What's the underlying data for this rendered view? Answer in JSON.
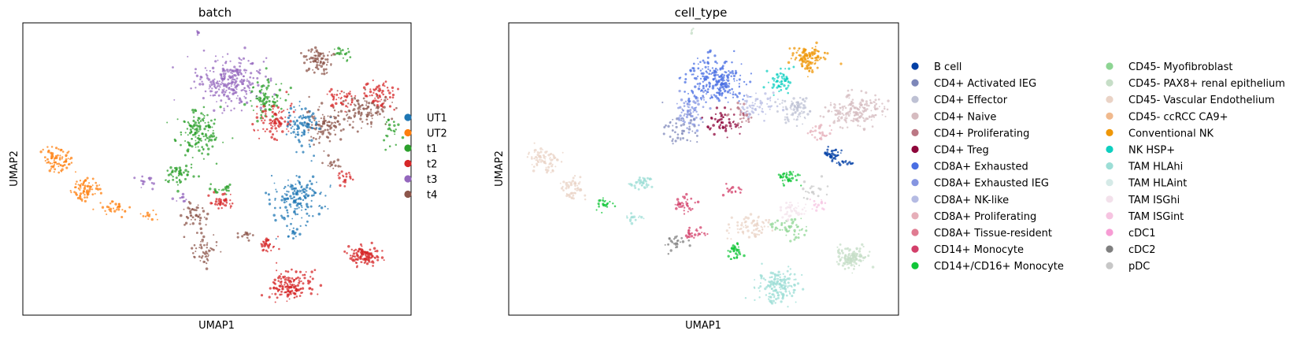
{
  "chart_data": [
    {
      "type": "scatter",
      "title": "batch",
      "xlabel": "UMAP1",
      "ylabel": "UMAP2",
      "grid": false,
      "legend_placement": "right",
      "categories": [
        {
          "name": "UT1",
          "color": "#1f77b4"
        },
        {
          "name": "UT2",
          "color": "#ff7f0e"
        },
        {
          "name": "t1",
          "color": "#2ca02c"
        },
        {
          "name": "t2",
          "color": "#d62728"
        },
        {
          "name": "t3",
          "color": "#9467bd"
        },
        {
          "name": "t4",
          "color": "#8c564b"
        }
      ],
      "clusters": [
        {
          "cat": 4,
          "x": 0.53,
          "y": 0.8,
          "rx": 0.075,
          "ry": 0.075,
          "n": 260
        },
        {
          "cat": 2,
          "x": 0.45,
          "y": 0.62,
          "rx": 0.05,
          "ry": 0.07,
          "n": 150
        },
        {
          "cat": 2,
          "x": 0.62,
          "y": 0.74,
          "rx": 0.05,
          "ry": 0.06,
          "n": 90
        },
        {
          "cat": 2,
          "x": 0.4,
          "y": 0.48,
          "rx": 0.035,
          "ry": 0.035,
          "n": 50
        },
        {
          "cat": 2,
          "x": 0.82,
          "y": 0.9,
          "rx": 0.02,
          "ry": 0.02,
          "n": 20
        },
        {
          "cat": 2,
          "x": 0.95,
          "y": 0.64,
          "rx": 0.025,
          "ry": 0.04,
          "n": 25
        },
        {
          "cat": 5,
          "x": 0.76,
          "y": 0.87,
          "rx": 0.035,
          "ry": 0.04,
          "n": 80
        },
        {
          "cat": 5,
          "x": 0.78,
          "y": 0.65,
          "rx": 0.05,
          "ry": 0.05,
          "n": 100
        },
        {
          "cat": 5,
          "x": 0.88,
          "y": 0.7,
          "rx": 0.06,
          "ry": 0.05,
          "n": 110
        },
        {
          "cat": 5,
          "x": 0.44,
          "y": 0.34,
          "rx": 0.035,
          "ry": 0.045,
          "n": 45
        },
        {
          "cat": 5,
          "x": 0.47,
          "y": 0.22,
          "rx": 0.035,
          "ry": 0.05,
          "n": 50
        },
        {
          "cat": 5,
          "x": 0.58,
          "y": 0.27,
          "rx": 0.02,
          "ry": 0.02,
          "n": 15
        },
        {
          "cat": 5,
          "x": 0.8,
          "y": 0.52,
          "rx": 0.02,
          "ry": 0.02,
          "n": 15
        },
        {
          "cat": 3,
          "x": 0.65,
          "y": 0.67,
          "rx": 0.04,
          "ry": 0.05,
          "n": 90
        },
        {
          "cat": 3,
          "x": 0.82,
          "y": 0.74,
          "rx": 0.035,
          "ry": 0.03,
          "n": 40
        },
        {
          "cat": 3,
          "x": 0.92,
          "y": 0.75,
          "rx": 0.04,
          "ry": 0.04,
          "n": 60
        },
        {
          "cat": 3,
          "x": 0.69,
          "y": 0.1,
          "rx": 0.045,
          "ry": 0.05,
          "n": 160
        },
        {
          "cat": 3,
          "x": 0.88,
          "y": 0.2,
          "rx": 0.035,
          "ry": 0.03,
          "n": 120
        },
        {
          "cat": 3,
          "x": 0.63,
          "y": 0.24,
          "rx": 0.02,
          "ry": 0.03,
          "n": 35
        },
        {
          "cat": 3,
          "x": 0.51,
          "y": 0.39,
          "rx": 0.03,
          "ry": 0.03,
          "n": 40
        },
        {
          "cat": 3,
          "x": 0.83,
          "y": 0.47,
          "rx": 0.015,
          "ry": 0.02,
          "n": 20
        },
        {
          "cat": 0,
          "x": 0.72,
          "y": 0.65,
          "rx": 0.035,
          "ry": 0.06,
          "n": 90
        },
        {
          "cat": 0,
          "x": 0.71,
          "y": 0.4,
          "rx": 0.06,
          "ry": 0.08,
          "n": 170
        },
        {
          "cat": 0,
          "x": 0.69,
          "y": 0.28,
          "rx": 0.02,
          "ry": 0.02,
          "n": 15
        },
        {
          "cat": 1,
          "x": 0.09,
          "y": 0.53,
          "rx": 0.035,
          "ry": 0.035,
          "n": 80
        },
        {
          "cat": 1,
          "x": 0.16,
          "y": 0.43,
          "rx": 0.035,
          "ry": 0.04,
          "n": 70
        },
        {
          "cat": 1,
          "x": 0.24,
          "y": 0.37,
          "rx": 0.03,
          "ry": 0.025,
          "n": 30
        },
        {
          "cat": 1,
          "x": 0.32,
          "y": 0.34,
          "rx": 0.02,
          "ry": 0.02,
          "n": 12
        },
        {
          "cat": 4,
          "x": 0.32,
          "y": 0.46,
          "rx": 0.02,
          "ry": 0.02,
          "n": 15
        },
        {
          "cat": 4,
          "x": 0.41,
          "y": 0.4,
          "rx": 0.02,
          "ry": 0.015,
          "n": 10
        },
        {
          "cat": 2,
          "x": 0.51,
          "y": 0.43,
          "rx": 0.025,
          "ry": 0.02,
          "n": 20
        },
        {
          "cat": 4,
          "x": 0.45,
          "y": 0.97,
          "rx": 0.005,
          "ry": 0.01,
          "n": 6
        }
      ]
    },
    {
      "type": "scatter",
      "title": "cell_type",
      "xlabel": "UMAP1",
      "ylabel": "UMAP2",
      "grid": false,
      "legend_placement": "right",
      "categories": [
        {
          "name": "B cell",
          "color": "#023fa5"
        },
        {
          "name": "CD4+ Activated IEG",
          "color": "#7d87b9"
        },
        {
          "name": "CD4+ Effector",
          "color": "#bec1d4"
        },
        {
          "name": "CD4+ Naive",
          "color": "#d6bcc0"
        },
        {
          "name": "CD4+ Proliferating",
          "color": "#bb7784"
        },
        {
          "name": "CD4+ Treg",
          "color": "#8e063b"
        },
        {
          "name": "CD8A+ Exhausted",
          "color": "#4a6fe3"
        },
        {
          "name": "CD8A+ Exhausted IEG",
          "color": "#8595e1"
        },
        {
          "name": "CD8A+ NK-like",
          "color": "#b5bbe3"
        },
        {
          "name": "CD8A+ Proliferating",
          "color": "#e6afb9"
        },
        {
          "name": "CD8A+ Tissue-resident",
          "color": "#e07b91"
        },
        {
          "name": "CD14+ Monocyte",
          "color": "#d33f6a"
        },
        {
          "name": "CD14+/CD16+ Monocyte",
          "color": "#11c638"
        },
        {
          "name": "CD45- Myofibroblast",
          "color": "#8dd593"
        },
        {
          "name": "CD45- PAX8+ renal epithelium",
          "color": "#c6dec7"
        },
        {
          "name": "CD45- Vascular Endothelium",
          "color": "#ead3c6"
        },
        {
          "name": "CD45- ccRCC CA9+",
          "color": "#f0b98d"
        },
        {
          "name": "Conventional NK",
          "color": "#ef9708"
        },
        {
          "name": "NK HSP+",
          "color": "#0fcfc0"
        },
        {
          "name": "TAM HLAhi",
          "color": "#9cded6"
        },
        {
          "name": "TAM HLAint",
          "color": "#d5eae7"
        },
        {
          "name": "TAM ISGhi",
          "color": "#f3e1eb"
        },
        {
          "name": "TAM ISGint",
          "color": "#f6c4e1"
        },
        {
          "name": "cDC1",
          "color": "#f79cd4"
        },
        {
          "name": "cDC2",
          "color": "#7f7f7f"
        },
        {
          "name": "pDC",
          "color": "#c7c7c7"
        }
      ],
      "clusters": [
        {
          "cat": 6,
          "x": 0.53,
          "y": 0.8,
          "rx": 0.07,
          "ry": 0.07,
          "n": 240
        },
        {
          "cat": 7,
          "x": 0.47,
          "y": 0.7,
          "rx": 0.04,
          "ry": 0.05,
          "n": 70
        },
        {
          "cat": 1,
          "x": 0.44,
          "y": 0.64,
          "rx": 0.035,
          "ry": 0.05,
          "n": 50
        },
        {
          "cat": 5,
          "x": 0.55,
          "y": 0.66,
          "rx": 0.04,
          "ry": 0.04,
          "n": 60
        },
        {
          "cat": 4,
          "x": 0.6,
          "y": 0.68,
          "rx": 0.03,
          "ry": 0.03,
          "n": 30
        },
        {
          "cat": 17,
          "x": 0.77,
          "y": 0.88,
          "rx": 0.035,
          "ry": 0.04,
          "n": 120
        },
        {
          "cat": 18,
          "x": 0.7,
          "y": 0.8,
          "rx": 0.03,
          "ry": 0.04,
          "n": 60
        },
        {
          "cat": 2,
          "x": 0.73,
          "y": 0.7,
          "rx": 0.04,
          "ry": 0.04,
          "n": 80
        },
        {
          "cat": 3,
          "x": 0.89,
          "y": 0.7,
          "rx": 0.07,
          "ry": 0.05,
          "n": 180
        },
        {
          "cat": 8,
          "x": 0.64,
          "y": 0.72,
          "rx": 0.04,
          "ry": 0.04,
          "n": 60
        },
        {
          "cat": 9,
          "x": 0.8,
          "y": 0.62,
          "rx": 0.03,
          "ry": 0.03,
          "n": 30
        },
        {
          "cat": 0,
          "x": 0.83,
          "y": 0.55,
          "rx": 0.02,
          "ry": 0.025,
          "n": 45
        },
        {
          "cat": 0,
          "x": 0.86,
          "y": 0.52,
          "rx": 0.02,
          "ry": 0.01,
          "n": 15
        },
        {
          "cat": 15,
          "x": 0.09,
          "y": 0.53,
          "rx": 0.035,
          "ry": 0.035,
          "n": 80
        },
        {
          "cat": 15,
          "x": 0.16,
          "y": 0.43,
          "rx": 0.03,
          "ry": 0.035,
          "n": 55
        },
        {
          "cat": 19,
          "x": 0.34,
          "y": 0.45,
          "rx": 0.025,
          "ry": 0.02,
          "n": 40
        },
        {
          "cat": 19,
          "x": 0.69,
          "y": 0.1,
          "rx": 0.045,
          "ry": 0.05,
          "n": 170
        },
        {
          "cat": 14,
          "x": 0.88,
          "y": 0.2,
          "rx": 0.035,
          "ry": 0.03,
          "n": 130
        },
        {
          "cat": 12,
          "x": 0.58,
          "y": 0.22,
          "rx": 0.02,
          "ry": 0.03,
          "n": 35
        },
        {
          "cat": 12,
          "x": 0.24,
          "y": 0.38,
          "rx": 0.02,
          "ry": 0.02,
          "n": 25
        },
        {
          "cat": 12,
          "x": 0.72,
          "y": 0.47,
          "rx": 0.03,
          "ry": 0.02,
          "n": 40
        },
        {
          "cat": 11,
          "x": 0.45,
          "y": 0.38,
          "rx": 0.025,
          "ry": 0.025,
          "n": 35
        },
        {
          "cat": 11,
          "x": 0.47,
          "y": 0.28,
          "rx": 0.025,
          "ry": 0.02,
          "n": 25
        },
        {
          "cat": 11,
          "x": 0.58,
          "y": 0.42,
          "rx": 0.02,
          "ry": 0.015,
          "n": 15
        },
        {
          "cat": 13,
          "x": 0.72,
          "y": 0.3,
          "rx": 0.04,
          "ry": 0.03,
          "n": 50
        },
        {
          "cat": 15,
          "x": 0.62,
          "y": 0.3,
          "rx": 0.05,
          "ry": 0.04,
          "n": 70
        },
        {
          "cat": 21,
          "x": 0.73,
          "y": 0.36,
          "rx": 0.03,
          "ry": 0.025,
          "n": 40
        },
        {
          "cat": 24,
          "x": 0.43,
          "y": 0.25,
          "rx": 0.03,
          "ry": 0.03,
          "n": 25
        },
        {
          "cat": 19,
          "x": 0.32,
          "y": 0.33,
          "rx": 0.02,
          "ry": 0.015,
          "n": 15
        },
        {
          "cat": 25,
          "x": 0.78,
          "y": 0.42,
          "rx": 0.03,
          "ry": 0.03,
          "n": 20
        },
        {
          "cat": 22,
          "x": 0.79,
          "y": 0.38,
          "rx": 0.02,
          "ry": 0.02,
          "n": 15
        },
        {
          "cat": 14,
          "x": 0.47,
          "y": 0.97,
          "rx": 0.005,
          "ry": 0.01,
          "n": 6
        }
      ]
    }
  ]
}
